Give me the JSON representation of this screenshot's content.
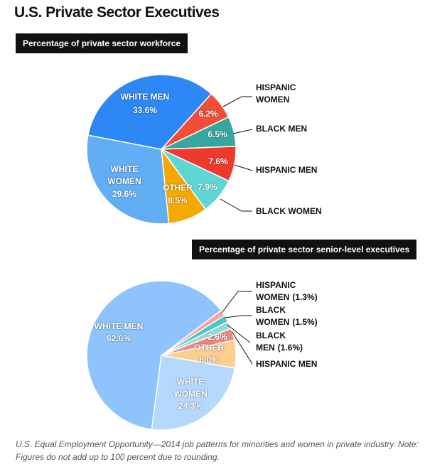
{
  "title": "U.S. Private Sector Executives",
  "note": "U.S. Equal Employment Opportunity—2014 job patterns for minorities and women in private industry. Note: Figures do not add up to 100 percent due to rounding.",
  "chart_data": [
    {
      "type": "pie",
      "title": "Percentage of private sector workforce",
      "categories": [
        "HISPANIC WOMEN",
        "BLACK MEN",
        "HISPANIC MEN",
        "BLACK WOMEN",
        "OTHER",
        "WHITE WOMEN",
        "WHITE MEN"
      ],
      "values": [
        6.2,
        6.5,
        7.6,
        7.9,
        8.5,
        29.6,
        33.6
      ],
      "value_labels": [
        "6.2%",
        "6.5%",
        "7.6%",
        "7.9%",
        "8.5%",
        "29.6%",
        "33.6%"
      ],
      "colors": [
        "#f04e37",
        "#35a7a0",
        "#ee3a2d",
        "#5fd6d6",
        "#f5a900",
        "#62aef5",
        "#2d87f5"
      ]
    },
    {
      "type": "pie",
      "title": "Percentage of private sector senior-level executives",
      "categories": [
        "HISPANIC WOMEN",
        "BLACK WOMEN",
        "BLACK MEN",
        "HISPANIC MEN",
        "OTHER",
        "WHITE WOMEN",
        "WHITE MEN"
      ],
      "values": [
        1.3,
        1.5,
        1.6,
        2.6,
        6.0,
        24.3,
        62.6
      ],
      "value_labels": [
        "(1.3%)",
        "(1.5%)",
        "(1.6%)",
        "2.6%",
        "6.0%",
        "24.3%",
        "62.6%"
      ],
      "colors": [
        "#f6a3a3",
        "#4fc5bf",
        "#8fdcd6",
        "#f08585",
        "#fccf8f",
        "#b5d8fd",
        "#8ec3fb"
      ]
    }
  ]
}
